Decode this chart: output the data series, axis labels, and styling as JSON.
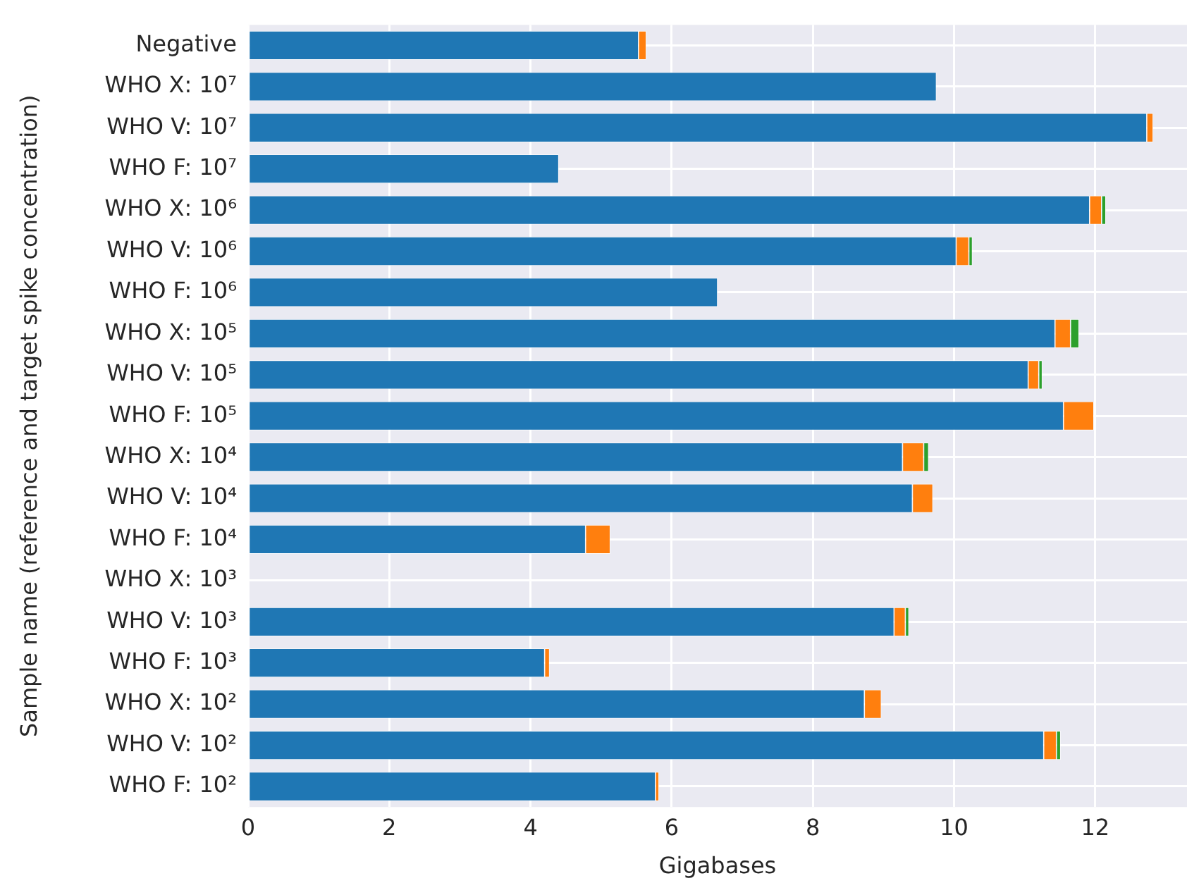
{
  "chart_data": {
    "type": "bar",
    "orientation": "horizontal",
    "stacked": true,
    "xlabel": "Gigabases",
    "ylabel": "Sample name (reference and target spike concentration)",
    "categories": [
      "Negative",
      "WHO X: 10⁷",
      "WHO V: 10⁷",
      "WHO F: 10⁷",
      "WHO X: 10⁶",
      "WHO V: 10⁶",
      "WHO F: 10⁶",
      "WHO X: 10⁵",
      "WHO V: 10⁵",
      "WHO F: 10⁵",
      "WHO X: 10⁴",
      "WHO V: 10⁴",
      "WHO F: 10⁴",
      "WHO X: 10³",
      "WHO V: 10³",
      "WHO F: 10³",
      "WHO X: 10²",
      "WHO V: 10²",
      "WHO F: 10²"
    ],
    "series": [
      {
        "color": "#1f77b4",
        "values": [
          5.53,
          9.75,
          12.73,
          4.4,
          11.92,
          10.03,
          6.65,
          11.43,
          11.05,
          11.55,
          9.27,
          9.41,
          4.78,
          null,
          9.15,
          4.2,
          8.73,
          11.27,
          5.77
        ]
      },
      {
        "color": "#ff7f0e",
        "values": [
          0.11,
          null,
          0.09,
          null,
          0.17,
          0.18,
          null,
          0.22,
          0.15,
          0.43,
          0.3,
          0.29,
          0.35,
          null,
          0.16,
          0.07,
          0.24,
          0.18,
          0.05
        ]
      },
      {
        "color": "#2ca02c",
        "values": [
          null,
          null,
          null,
          null,
          0.06,
          0.05,
          null,
          0.12,
          0.05,
          null,
          0.07,
          null,
          null,
          null,
          0.05,
          null,
          null,
          0.06,
          null
        ]
      }
    ],
    "xlim": [
      0,
      13.3
    ],
    "xticks": [
      0,
      2,
      4,
      6,
      8,
      10,
      12
    ],
    "grid": true,
    "legend": false
  }
}
